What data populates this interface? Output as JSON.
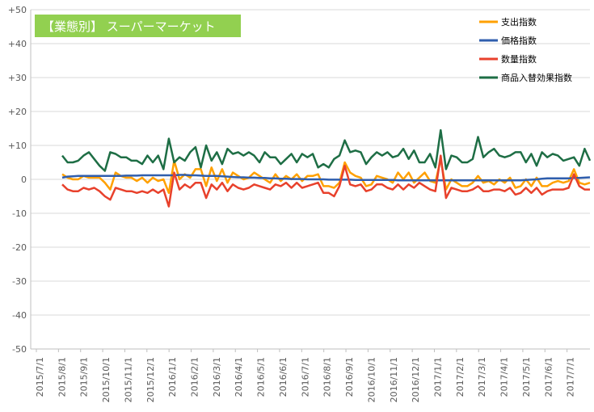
{
  "chart_data": {
    "type": "line",
    "title": "【業態別】 スーパーマーケット",
    "title_bg": "#92d050",
    "xlabel": "",
    "ylabel": "",
    "ylim": [
      -50,
      50
    ],
    "y_ticks": [
      "-50",
      "-40",
      "-30",
      "-20",
      "-10",
      "0",
      "+10",
      "+20",
      "+30",
      "+40",
      "+50"
    ],
    "y_tick_values": [
      -50,
      -40,
      -30,
      -20,
      -10,
      0,
      10,
      20,
      30,
      40,
      50
    ],
    "x_tick_labels": [
      "2015/7/1",
      "2015/8/1",
      "2015/9/1",
      "2015/10/1",
      "2015/11/1",
      "2015/12/1",
      "2016/1/1",
      "2016/2/1",
      "2016/3/1",
      "2016/4/1",
      "2016/5/1",
      "2016/6/1",
      "2016/7/1",
      "2016/8/1",
      "2016/9/1",
      "2016/10/1",
      "2016/11/1",
      "2016/12/1",
      "2017/1/1",
      "2017/2/1",
      "2017/3/1",
      "2017/4/1",
      "2017/5/1",
      "2017/6/1",
      "2017/7/1"
    ],
    "grid": true,
    "legend_position": "top-right",
    "series": [
      {
        "name": "支出指数",
        "color": "#ffa000",
        "values": [
          1.5,
          0.5,
          0.0,
          0.0,
          1.0,
          0.5,
          0.5,
          0.5,
          -1.0,
          -3.0,
          2.0,
          1.0,
          0.5,
          0.5,
          -0.5,
          0.5,
          -1.0,
          0.5,
          -0.5,
          0.0,
          -4.0,
          5.5,
          0.0,
          1.5,
          0.5,
          3.0,
          3.0,
          -2.0,
          3.5,
          -0.5,
          3.0,
          -1.0,
          2.0,
          1.0,
          0.0,
          0.5,
          2.0,
          1.0,
          0.0,
          -1.0,
          1.5,
          -0.5,
          1.0,
          0.0,
          1.5,
          -0.5,
          1.0,
          1.0,
          1.5,
          -2.0,
          -2.0,
          -2.5,
          -1.0,
          5.0,
          2.0,
          1.0,
          0.5,
          -2.0,
          -1.5,
          1.0,
          0.5,
          0.0,
          -1.0,
          2.0,
          0.0,
          2.0,
          -1.0,
          0.5,
          2.0,
          -0.5,
          -1.0,
          6.0,
          -3.0,
          0.0,
          -1.0,
          -2.0,
          -2.0,
          -1.0,
          1.0,
          -1.0,
          -0.5,
          -1.5,
          0.0,
          -1.0,
          0.5,
          -2.5,
          -2.0,
          0.0,
          -2.0,
          0.5,
          -2.0,
          -2.0,
          -1.0,
          -0.5,
          -1.0,
          -0.5,
          3.0,
          -1.0,
          -1.5,
          -1.0
        ]
      },
      {
        "name": "価格指数",
        "color": "#2f5ead",
        "values": [
          0.5,
          0.8,
          0.9,
          1.0,
          1.0,
          1.0,
          1.0,
          1.0,
          1.0,
          1.0,
          1.0,
          1.0,
          1.1,
          1.1,
          1.1,
          1.2,
          1.2,
          1.2,
          1.2,
          1.2,
          1.2,
          1.2,
          1.3,
          1.3,
          1.2,
          1.2,
          1.1,
          1.0,
          1.0,
          1.0,
          0.9,
          0.8,
          0.7,
          0.6,
          0.6,
          0.5,
          0.5,
          0.4,
          0.4,
          0.3,
          0.3,
          0.2,
          0.2,
          0.1,
          0.1,
          0.1,
          0.0,
          0.0,
          0.0,
          0.0,
          -0.1,
          -0.1,
          -0.1,
          -0.1,
          -0.1,
          -0.2,
          -0.2,
          -0.2,
          -0.2,
          -0.2,
          -0.2,
          -0.2,
          -0.2,
          -0.3,
          -0.3,
          -0.3,
          -0.3,
          -0.3,
          -0.3,
          -0.3,
          -0.3,
          -0.3,
          -0.3,
          -0.3,
          -0.3,
          -0.3,
          -0.3,
          -0.3,
          -0.3,
          -0.3,
          -0.3,
          -0.3,
          -0.3,
          -0.3,
          -0.3,
          -0.3,
          -0.3,
          -0.2,
          -0.1,
          0.0,
          0.2,
          0.3,
          0.3,
          0.3,
          0.3,
          0.3,
          0.4,
          0.4,
          0.5,
          0.6
        ]
      },
      {
        "name": "数量指数",
        "color": "#e8412c",
        "values": [
          -1.5,
          -3.0,
          -3.5,
          -3.5,
          -2.5,
          -3.0,
          -2.5,
          -3.5,
          -5.0,
          -6.0,
          -2.5,
          -3.0,
          -3.5,
          -3.5,
          -4.0,
          -3.5,
          -4.0,
          -3.0,
          -4.0,
          -3.0,
          -8.0,
          2.0,
          -3.0,
          -1.5,
          -2.5,
          -1.0,
          -1.0,
          -5.5,
          -1.5,
          -3.0,
          -1.0,
          -3.5,
          -1.5,
          -2.5,
          -3.0,
          -2.5,
          -1.5,
          -2.0,
          -2.5,
          -3.0,
          -1.5,
          -2.0,
          -1.0,
          -2.5,
          -1.0,
          -2.5,
          -2.0,
          -1.5,
          -1.0,
          -4.0,
          -4.0,
          -5.0,
          -2.0,
          4.0,
          -1.5,
          -2.0,
          -1.5,
          -3.5,
          -3.0,
          -1.5,
          -1.5,
          -2.5,
          -3.0,
          -1.5,
          -3.0,
          -1.5,
          -2.5,
          -1.0,
          -2.0,
          -3.0,
          -3.5,
          7.0,
          -5.5,
          -2.5,
          -3.0,
          -3.5,
          -3.5,
          -3.0,
          -2.0,
          -3.5,
          -3.5,
          -3.0,
          -3.0,
          -3.5,
          -2.5,
          -4.5,
          -4.0,
          -2.5,
          -4.0,
          -2.5,
          -4.5,
          -3.5,
          -3.0,
          -3.0,
          -3.0,
          -2.5,
          1.5,
          -2.0,
          -3.0,
          -3.0
        ]
      },
      {
        "name": "商品入替効果指数",
        "color": "#1e6e45",
        "values": [
          7.0,
          5.0,
          5.0,
          5.5,
          7.0,
          8.0,
          6.0,
          4.0,
          2.5,
          8.0,
          7.5,
          6.5,
          6.5,
          5.5,
          5.5,
          4.5,
          7.0,
          5.0,
          7.0,
          3.0,
          12.0,
          5.0,
          6.5,
          5.5,
          8.0,
          9.5,
          3.5,
          10.0,
          5.5,
          8.0,
          4.5,
          9.0,
          7.5,
          8.0,
          7.0,
          8.0,
          7.0,
          5.0,
          8.0,
          6.5,
          6.5,
          4.5,
          6.0,
          7.5,
          5.0,
          7.5,
          6.5,
          7.5,
          3.5,
          4.5,
          3.5,
          6.0,
          7.0,
          11.5,
          8.0,
          8.5,
          8.0,
          4.5,
          6.5,
          8.0,
          7.0,
          8.0,
          6.5,
          7.0,
          9.0,
          6.0,
          8.5,
          5.0,
          5.0,
          7.5,
          3.5,
          14.5,
          3.0,
          7.0,
          6.5,
          5.0,
          5.0,
          6.0,
          12.5,
          6.5,
          8.0,
          9.0,
          7.0,
          6.5,
          7.0,
          8.0,
          8.0,
          5.0,
          7.5,
          4.0,
          8.0,
          6.5,
          7.5,
          7.0,
          5.5,
          6.0,
          6.5,
          4.0,
          9.0,
          5.5
        ]
      }
    ]
  }
}
